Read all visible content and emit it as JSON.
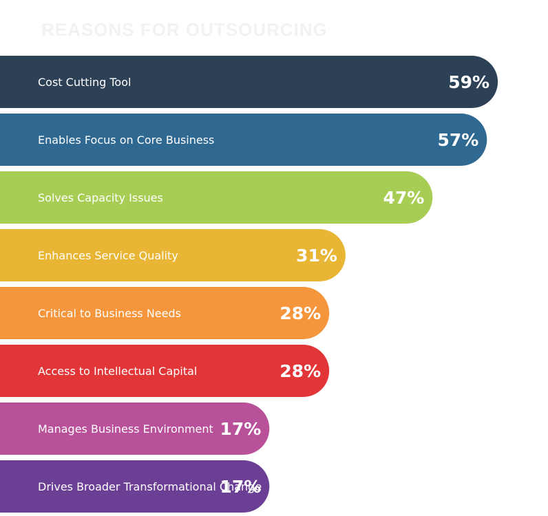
{
  "chart_data": {
    "type": "bar",
    "orientation": "horizontal",
    "title": "REASONS FOR OUTSOURCING",
    "categories": [
      "Cost Cutting Tool",
      "Enables Focus on Core Business",
      "Solves Capacity Issues",
      "Enhances Service Quality",
      "Critical to Business Needs",
      "Access to Intellectual Capital",
      "Manages Business Environment",
      "Drives Broader Transformational Change"
    ],
    "values": [
      59,
      57,
      47,
      31,
      28,
      28,
      17,
      17
    ],
    "value_labels": [
      "59%",
      "57%",
      "47%",
      "31%",
      "28%",
      "28%",
      "17%",
      "17%"
    ],
    "colors": [
      "#2c4156",
      "#2f6890",
      "#a7cd55",
      "#e8b535",
      "#f5953c",
      "#e23538",
      "#b9519a",
      "#6b3f94"
    ],
    "xlim": [
      0,
      60
    ],
    "grid": false,
    "legend": "none"
  }
}
